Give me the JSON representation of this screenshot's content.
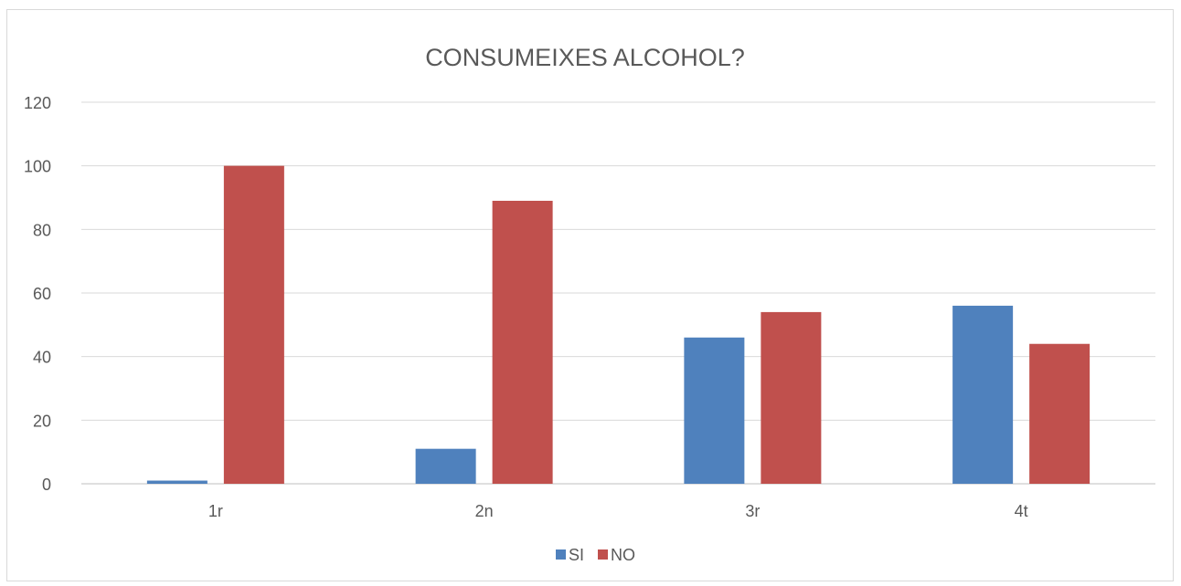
{
  "chart_data": {
    "type": "bar",
    "title": "CONSUMEIXES ALCOHOL?",
    "xlabel": "",
    "ylabel": "",
    "categories": [
      "1r",
      "2n",
      "3r",
      "4t"
    ],
    "series": [
      {
        "name": "SI",
        "color": "#4f81bd",
        "values": [
          1,
          11,
          46,
          56
        ]
      },
      {
        "name": "NO",
        "color": "#c0504d",
        "values": [
          100,
          89,
          54,
          44
        ]
      }
    ],
    "ylim": [
      0,
      120
    ],
    "yticks": [
      "0",
      "20",
      "40",
      "60",
      "80",
      "100",
      "120"
    ],
    "grid": true,
    "legend_position": "bottom"
  }
}
